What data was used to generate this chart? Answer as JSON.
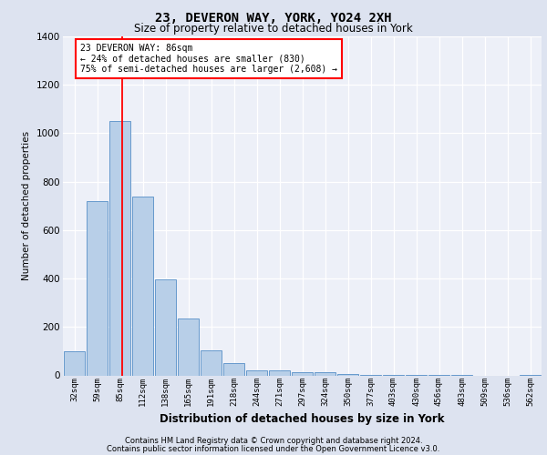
{
  "title1": "23, DEVERON WAY, YORK, YO24 2XH",
  "title2": "Size of property relative to detached houses in York",
  "xlabel": "Distribution of detached houses by size in York",
  "ylabel": "Number of detached properties",
  "categories": [
    "32sqm",
    "59sqm",
    "85sqm",
    "112sqm",
    "138sqm",
    "165sqm",
    "191sqm",
    "218sqm",
    "244sqm",
    "271sqm",
    "297sqm",
    "324sqm",
    "350sqm",
    "377sqm",
    "403sqm",
    "430sqm",
    "456sqm",
    "483sqm",
    "509sqm",
    "536sqm",
    "562sqm"
  ],
  "values": [
    100,
    720,
    1050,
    740,
    395,
    235,
    105,
    50,
    22,
    22,
    15,
    15,
    5,
    2,
    2,
    2,
    1,
    1,
    0,
    0,
    1
  ],
  "bar_color": "#b8cfe8",
  "bar_edge_color": "#6699cc",
  "bg_color": "#dde3f0",
  "plot_bg_color": "#edf0f8",
  "grid_color": "#ffffff",
  "annotation_text_line1": "23 DEVERON WAY: 86sqm",
  "annotation_text_line2": "← 24% of detached houses are smaller (830)",
  "annotation_text_line3": "75% of semi-detached houses are larger (2,608) →",
  "ylim": [
    0,
    1400
  ],
  "yticks": [
    0,
    200,
    400,
    600,
    800,
    1000,
    1200,
    1400
  ],
  "footer1": "Contains HM Land Registry data © Crown copyright and database right 2024.",
  "footer2": "Contains public sector information licensed under the Open Government Licence v3.0."
}
